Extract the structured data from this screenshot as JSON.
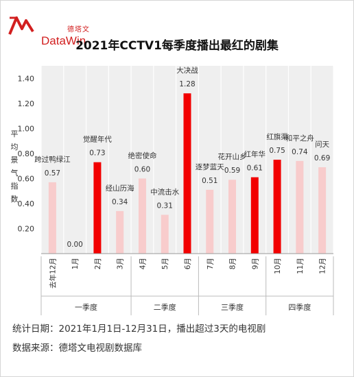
{
  "brand": {
    "cn": "德塔文",
    "en": "DataWin",
    "color": "#d21f1f"
  },
  "footer": {
    "stat_date": "统计日期：2021年1月1日-12月31日，播出超过3天的电视剧",
    "source": "数据来源：德塔文电视剧数据库"
  },
  "chart_data": {
    "type": "bar",
    "title": "2021年CCTV1每季度播出最红的剧集",
    "ylabel": "平均景气指数",
    "ylim": [
      0,
      1.5
    ],
    "yticks": [
      0.2,
      0.4,
      0.6,
      0.8,
      1.0,
      1.2,
      1.4
    ],
    "categories": [
      "去年12月",
      "1月",
      "2月",
      "3月",
      "4月",
      "5月",
      "6月",
      "7月",
      "8月",
      "9月",
      "10月",
      "11月",
      "12月"
    ],
    "values": [
      0.57,
      0.0,
      0.73,
      0.34,
      0.6,
      0.31,
      1.28,
      0.51,
      0.59,
      0.61,
      0.75,
      0.74,
      0.69
    ],
    "value_labels": [
      "0.57",
      "0.00",
      "0.73",
      "0.34",
      "0.60",
      "0.31",
      "1.28",
      "0.51",
      "0.59",
      "0.61",
      "0.75",
      "0.74",
      "0.69"
    ],
    "series_names": [
      "跨过鸭绿江",
      "",
      "觉醒年代",
      "经山历海",
      "绝密使命",
      "中流击水",
      "大决战",
      "逐梦蓝天",
      "花开山乡",
      "红年华",
      "红旗渠",
      "和平之舟",
      "问天"
    ],
    "highlighted": [
      false,
      false,
      true,
      false,
      false,
      false,
      true,
      false,
      false,
      true,
      true,
      false,
      false
    ],
    "quarters": [
      {
        "label": "一季度",
        "span": [
          0,
          3
        ]
      },
      {
        "label": "二季度",
        "span": [
          4,
          6
        ]
      },
      {
        "label": "三季度",
        "span": [
          7,
          9
        ]
      },
      {
        "label": "四季度",
        "span": [
          10,
          12
        ]
      }
    ],
    "colors": {
      "highlight": "#f20000",
      "normal": "#f8cccc",
      "band": "#efefef"
    },
    "grid": true
  }
}
